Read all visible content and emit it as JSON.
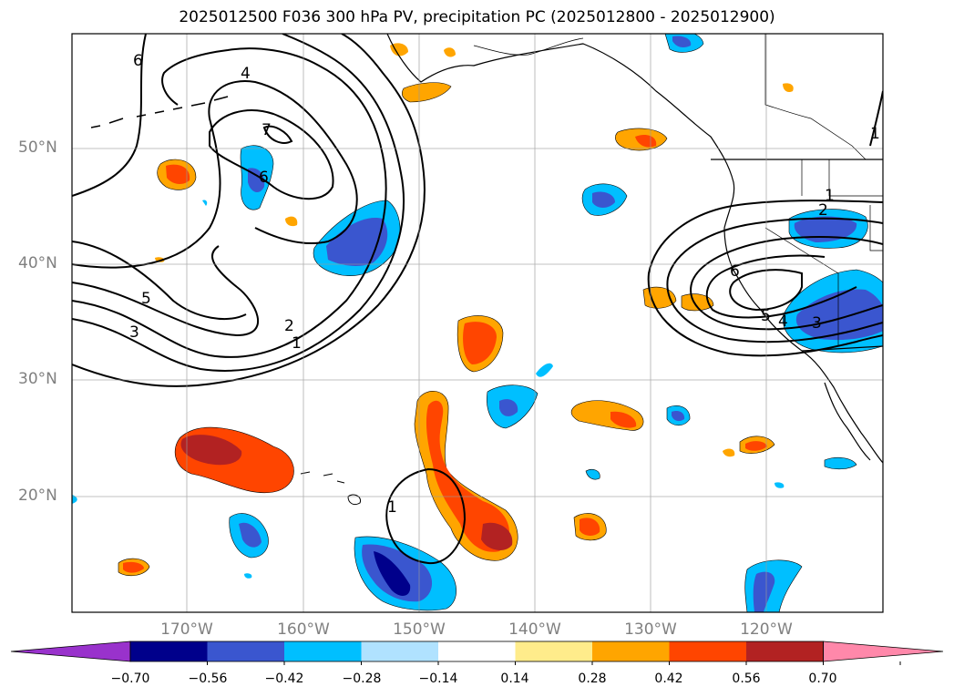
{
  "title": "2025012500 F036 300 hPa PV, precipitation PC (2025012800 - 2025012900)",
  "map": {
    "lat_labels": [
      "50°N",
      "40°N",
      "30°N",
      "20°N"
    ],
    "lon_labels": [
      "170°W",
      "160°W",
      "150°W",
      "140°W",
      "130°W",
      "120°W"
    ],
    "contour_labels": [
      "6",
      "4",
      "7",
      "6",
      "5",
      "3",
      "2",
      "1",
      "1",
      "2",
      "6",
      "5",
      "4",
      "3",
      "1",
      "1"
    ]
  },
  "colorbar": {
    "ticks": [
      "−0.70",
      "−0.56",
      "−0.42",
      "−0.28",
      "−0.14",
      "0.14",
      "0.28",
      "0.42",
      "0.56",
      "0.70"
    ],
    "colors": [
      "#9932cc",
      "#00008b",
      "#3a56cf",
      "#00bfff",
      "#b0e2ff",
      "#ffffff",
      "#ffec8b",
      "#ffa500",
      "#ff4500",
      "#b22222",
      "#ff88aa"
    ]
  }
}
